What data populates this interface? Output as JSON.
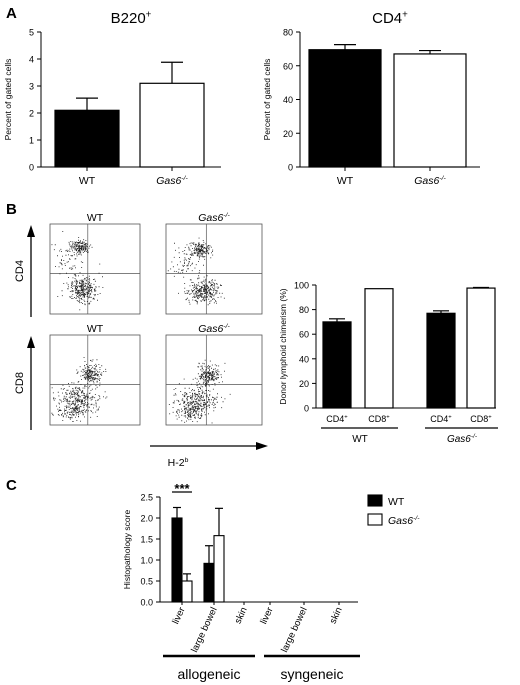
{
  "panels": {
    "A": {
      "label": "A",
      "charts": [
        {
          "type": "bar",
          "title_main": "B220",
          "title_sup": "+",
          "ylabel": "Percent of gated cells",
          "ylim": [
            0,
            5
          ],
          "yticks": [
            0,
            1,
            2,
            3,
            4,
            5
          ],
          "grid": false,
          "categories": [
            {
              "main": "WT",
              "sup": "",
              "italic": false
            },
            {
              "main": "Gas6",
              "sup": "-/-",
              "italic": true
            }
          ],
          "values": [
            2.1,
            3.1
          ],
          "errors": [
            0.45,
            0.78
          ],
          "fills": [
            "#000000",
            "#ffffff"
          ]
        },
        {
          "type": "bar",
          "title_main": "CD4",
          "title_sup": "+",
          "ylabel": "Percent of gated cells",
          "ylim": [
            0,
            80
          ],
          "yticks": [
            0,
            20,
            40,
            60,
            80
          ],
          "grid": false,
          "categories": [
            {
              "main": "WT",
              "sup": "",
              "italic": false
            },
            {
              "main": "Gas6",
              "sup": "-/-",
              "italic": true
            }
          ],
          "values": [
            69.5,
            67
          ],
          "errors": [
            3.0,
            2.0
          ],
          "fills": [
            "#000000",
            "#ffffff"
          ]
        }
      ]
    },
    "B": {
      "label": "B",
      "flow": {
        "col_headers": [
          {
            "main": "WT",
            "sup": "",
            "italic": false
          },
          {
            "main": "Gas6",
            "sup": "-/-",
            "italic": true
          }
        ],
        "row_labels": [
          "CD4",
          "CD8"
        ],
        "x_axis_label": {
          "main": "H-2",
          "sup": "b"
        },
        "plots": [
          {
            "name": "flow-plot-cd4-wt",
            "clusters": [
              [
                0.33,
                0.25,
                0.11,
                0.08,
                160
              ],
              [
                0.36,
                0.72,
                0.16,
                0.14,
                320
              ],
              [
                0.2,
                0.38,
                0.22,
                0.15,
                60
              ]
            ]
          },
          {
            "name": "flow-plot-cd4-gas6",
            "clusters": [
              [
                0.35,
                0.28,
                0.11,
                0.09,
                180
              ],
              [
                0.38,
                0.74,
                0.17,
                0.13,
                320
              ],
              [
                0.22,
                0.42,
                0.2,
                0.15,
                70
              ]
            ]
          },
          {
            "name": "flow-plot-cd8-wt",
            "clusters": [
              [
                0.45,
                0.42,
                0.12,
                0.12,
                200
              ],
              [
                0.3,
                0.72,
                0.22,
                0.18,
                320
              ],
              [
                0.22,
                0.85,
                0.15,
                0.1,
                80
              ]
            ]
          },
          {
            "name": "flow-plot-cd8-gas6",
            "clusters": [
              [
                0.44,
                0.45,
                0.12,
                0.13,
                210
              ],
              [
                0.3,
                0.74,
                0.22,
                0.17,
                320
              ],
              [
                0.24,
                0.86,
                0.15,
                0.1,
                80
              ]
            ]
          }
        ]
      },
      "chart": {
        "type": "bar",
        "ylabel": "Donor lymphoid chimerism (%)",
        "ylim": [
          0,
          100
        ],
        "yticks": [
          0,
          20,
          40,
          60,
          80,
          100
        ],
        "grid": false,
        "bars": [
          {
            "label_main": "CD4",
            "label_sup": "+",
            "value": 70,
            "error": 2.5,
            "fill": "#000000"
          },
          {
            "label_main": "CD8",
            "label_sup": "+",
            "value": 97,
            "error": 0,
            "fill": "#ffffff"
          },
          {
            "label_main": "CD4",
            "label_sup": "+",
            "value": 77,
            "error": 2.0,
            "fill": "#000000"
          },
          {
            "label_main": "CD8",
            "label_sup": "+",
            "value": 97.5,
            "error": 0.5,
            "fill": "#ffffff"
          }
        ],
        "groups": [
          {
            "main": "WT",
            "sup": "",
            "italic": false
          },
          {
            "main": "Gas6",
            "sup": "-/-",
            "italic": true
          }
        ]
      }
    },
    "C": {
      "label": "C",
      "chart": {
        "type": "bar",
        "ylabel": "Histopathology score",
        "ylim": [
          0,
          2.5
        ],
        "yticks": [
          "0.0",
          "0.5",
          "1.0",
          "1.5",
          "2.0",
          "2.5"
        ],
        "grid": false,
        "categories": [
          "liver",
          "large bowel",
          "skin",
          "liver",
          "large bowel",
          "skin"
        ],
        "series": [
          {
            "name_main": "WT",
            "name_sup": "",
            "italic": false,
            "fill": "#000000",
            "values": [
              2.0,
              0.92,
              0,
              0,
              0,
              0
            ],
            "errors": [
              0.25,
              0.42,
              0,
              0,
              0,
              0
            ]
          },
          {
            "name_main": "Gas6",
            "name_sup": "-/-",
            "italic": true,
            "fill": "#ffffff",
            "values": [
              0.5,
              1.58,
              0,
              0,
              0,
              0
            ],
            "errors": [
              0.17,
              0.65,
              0,
              0,
              0,
              0
            ]
          }
        ],
        "significance": "***",
        "groups": [
          "allogeneic",
          "syngeneic"
        ],
        "legend_position": "top-right"
      }
    }
  }
}
